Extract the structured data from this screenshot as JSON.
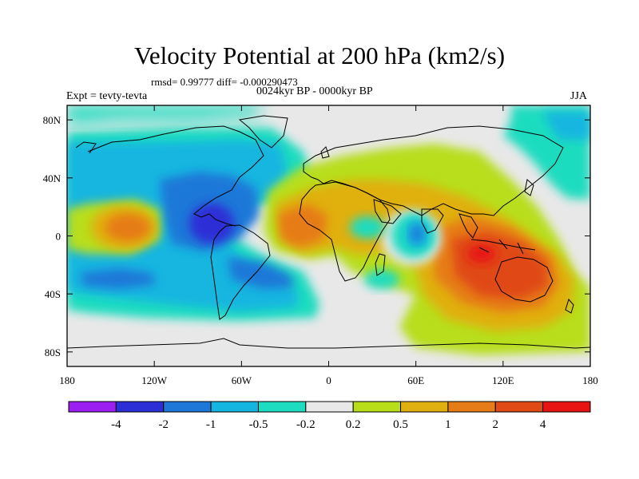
{
  "title": "Velocity Potential at 200 hPa (km2/s)",
  "stats_line": "rmsd= 0.99777 diff= -0.000290473",
  "period_line": "0024kyr BP - 0000kyr BP",
  "left_label": "Expt = tevty-tevta",
  "right_label": "JJA",
  "chart_data": {
    "type": "heatmap",
    "projection": "cylindrical equidistant",
    "x_ticks": [
      "180",
      "120W",
      "60W",
      "0",
      "60E",
      "120E",
      "180"
    ],
    "x_tick_values": [
      -180,
      -120,
      -60,
      0,
      60,
      120,
      180
    ],
    "y_ticks": [
      "80N",
      "40N",
      "0",
      "40S",
      "80S"
    ],
    "y_tick_values": [
      80,
      40,
      0,
      -40,
      -80
    ],
    "xlim": [
      -180,
      180
    ],
    "ylim": [
      -90,
      90
    ],
    "colorbar": {
      "labels": [
        "-4",
        "-2",
        "-1",
        "-0.5",
        "-0.2",
        "0.2",
        "0.5",
        "1",
        "2",
        "4"
      ],
      "colors": [
        "#9b1ff0",
        "#2d2fd6",
        "#1e78d8",
        "#13b6e0",
        "#1edcc0",
        "#e8e8e8",
        "#b8de1a",
        "#e0b010",
        "#e67c18",
        "#e04a14",
        "#e81414"
      ]
    },
    "field_features": [
      {
        "label": "-2",
        "lon": -82,
        "lat": 5,
        "rx": 14,
        "ry": 14
      },
      {
        "label": "-1",
        "lon": -85,
        "lat": 5,
        "rx": 46,
        "ry": 42
      },
      {
        "label": "-0.5",
        "lon": -95,
        "lat": 5,
        "rx": 85,
        "ry": 65
      },
      {
        "label": "-0.5",
        "lon": 60,
        "lat": 2,
        "rx": 9,
        "ry": 11
      },
      {
        "label": "-0.2",
        "lon": 62,
        "lat": 2,
        "rx": 20,
        "ry": 22
      },
      {
        "label": "0.2",
        "lon": 108,
        "lat": -12,
        "rx": 80,
        "ry": 60
      },
      {
        "label": "0.5",
        "lon": 108,
        "lat": -15,
        "rx": 62,
        "ry": 42
      },
      {
        "label": "1",
        "lon": 108,
        "lat": -18,
        "rx": 45,
        "ry": 30
      },
      {
        "label": "2",
        "lon": 105,
        "lat": -20,
        "rx": 28,
        "ry": 20
      },
      {
        "label": "4",
        "lon": 108,
        "lat": -14,
        "rx": 9,
        "ry": 7
      },
      {
        "label": "1",
        "lon": -140,
        "lat": 5,
        "rx": 15,
        "ry": 12
      },
      {
        "label": "0.5",
        "lon": -140,
        "lat": 5,
        "rx": 25,
        "ry": 18
      },
      {
        "label": "1",
        "lon": -28,
        "lat": 3,
        "rx": 12,
        "ry": 12
      }
    ]
  }
}
